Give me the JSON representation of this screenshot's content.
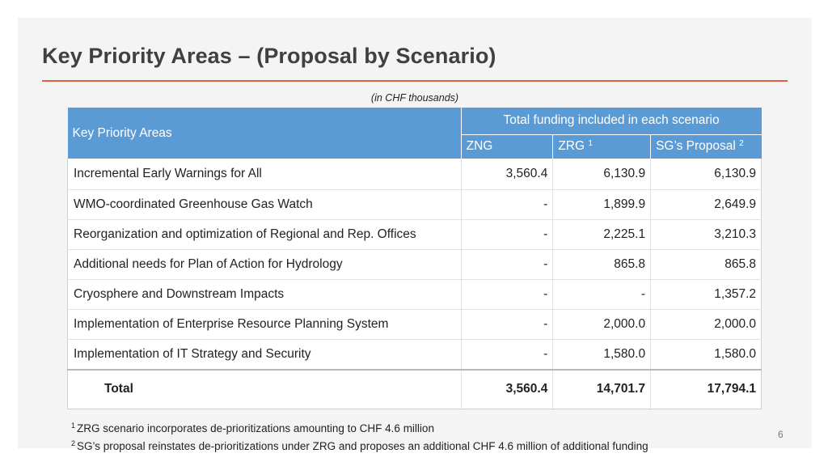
{
  "slide": {
    "title": "Key Priority Areas – (Proposal by Scenario)",
    "units_note": "(in CHF thousands)",
    "page_number": "6"
  },
  "table": {
    "header": {
      "area_label": "Key Priority Areas",
      "group_label": "Total funding included in each scenario",
      "zng_label": "ZNG",
      "zrg_label": "ZRG",
      "zrg_footnote": "1",
      "sg_label": "SG’s Proposal",
      "sg_footnote": "2"
    },
    "rows": [
      {
        "area": "Incremental Early Warnings for All",
        "zng": "3,560.4",
        "zrg": "6,130.9",
        "sg": "6,130.9"
      },
      {
        "area": "WMO-coordinated Greenhouse Gas Watch",
        "zng": "-",
        "zrg": "1,899.9",
        "sg": "2,649.9"
      },
      {
        "area": "Reorganization and optimization of Regional and Rep. Offices",
        "zng": "-",
        "zrg": "2,225.1",
        "sg": "3,210.3"
      },
      {
        "area": "Additional needs for Plan of Action for Hydrology",
        "zng": "-",
        "zrg": "865.8",
        "sg": "865.8"
      },
      {
        "area": "Cryosphere and Downstream Impacts",
        "zng": "-",
        "zrg": "-",
        "sg": "1,357.2"
      },
      {
        "area": "Implementation of Enterprise Resource Planning System",
        "zng": "-",
        "zrg": "2,000.0",
        "sg": "2,000.0"
      },
      {
        "area": "Implementation of IT Strategy and Security",
        "zng": "-",
        "zrg": "1,580.0",
        "sg": "1,580.0"
      }
    ],
    "total": {
      "area": "Total",
      "zng": "3,560.4",
      "zrg": "14,701.7",
      "sg": "17,794.1"
    }
  },
  "footnotes": [
    {
      "marker": "1",
      "text": "ZRG scenario incorporates de-prioritizations amounting to CHF 4.6 million"
    },
    {
      "marker": "2",
      "text": "SG’s proposal reinstates de-prioritizations under ZRG and proposes an additional CHF 4.6 million of additional funding"
    }
  ],
  "colors": {
    "accent_rule": "#e0603f",
    "header_fill": "#5b9bd5",
    "title_text": "#404040"
  }
}
